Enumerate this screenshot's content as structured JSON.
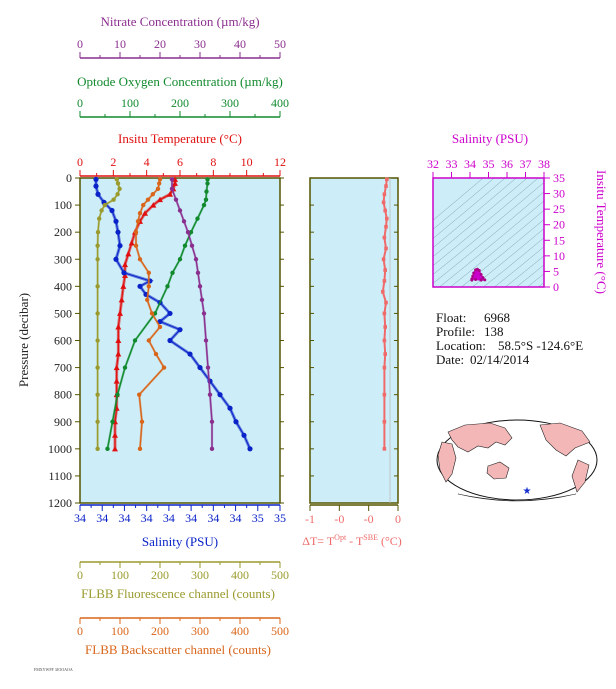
{
  "colors": {
    "nitrate": "#8b2f8f",
    "oxygen": "#118a2e",
    "temperature": "#e01010",
    "salinity": "#0a23c8",
    "fluorescence": "#9a9a2e",
    "backscatter": "#d9651a",
    "delta_t": "#f06a6a",
    "ts_axis": "#cc00cc",
    "panel_bg": "#cdeef8",
    "frame": "#555500"
  },
  "info": {
    "float_label": "Float:",
    "float_value": "6968",
    "profile_label": "Profile:",
    "profile_value": "138",
    "location_label": "Location:",
    "location_value": "58.5°S  -124.6°E",
    "date_label": "Date:",
    "date_value": "02/14/2014"
  },
  "chart_data": [
    {
      "type": "line",
      "panel": "profiles",
      "ylabel": "Pressure (decibar)",
      "ylim": [
        1200,
        0
      ],
      "yticks": [
        "0",
        "100",
        "200",
        "300",
        "400",
        "500",
        "600",
        "700",
        "800",
        "900",
        "1000",
        "1100",
        "1200"
      ],
      "grid": false,
      "axes": {
        "nitrate": {
          "label": "Nitrate Concentration (µm/kg)",
          "ticks": [
            "0",
            "10",
            "20",
            "30",
            "40",
            "50"
          ],
          "range": [
            0,
            50
          ]
        },
        "oxygen": {
          "label": "Optode Oxygen Concentration (µm/kg)",
          "ticks": [
            "0",
            "100",
            "200",
            "300",
            "400"
          ],
          "range": [
            0,
            400
          ]
        },
        "temperature": {
          "label": "Insitu Temperature (°C)",
          "ticks": [
            "0",
            "2",
            "4",
            "6",
            "8",
            "10",
            "12"
          ],
          "range": [
            0,
            12
          ]
        },
        "salinity": {
          "label": "Salinity (PSU)",
          "ticks": [
            "34",
            "34",
            "34",
            "34",
            "34",
            "34",
            "34",
            "34",
            "35",
            "35"
          ],
          "range": [
            34.0,
            35.0
          ]
        },
        "fluorescence": {
          "label": "FLBB Fluorescence channel (counts)",
          "ticks": [
            "0",
            "100",
            "200",
            "300",
            "400",
            "500"
          ],
          "range": [
            0,
            500
          ]
        },
        "backscatter": {
          "label": "FLBB Backscatter channel (counts)",
          "ticks": [
            "0",
            "100",
            "200",
            "300",
            "400",
            "500"
          ],
          "range": [
            0,
            500
          ]
        }
      },
      "series": [
        {
          "key": "temperature",
          "pressure": [
            5,
            20,
            40,
            60,
            80,
            100,
            130,
            160,
            200,
            240,
            280,
            320,
            360,
            400,
            450,
            500,
            550,
            600,
            650,
            700,
            750,
            800,
            850,
            900,
            950,
            1000
          ],
          "values": [
            5.7,
            5.7,
            5.6,
            5.4,
            4.8,
            4.4,
            3.9,
            3.6,
            3.3,
            3.1,
            2.9,
            2.7,
            2.7,
            2.6,
            2.5,
            2.4,
            2.3,
            2.3,
            2.3,
            2.2,
            2.2,
            2.2,
            2.2,
            2.1,
            2.1,
            2.1
          ]
        },
        {
          "key": "salinity",
          "pressure": [
            5,
            30,
            60,
            90,
            120,
            160,
            200,
            250,
            300,
            350,
            380,
            400,
            430,
            460,
            500,
            530,
            560,
            600,
            650,
            700,
            750,
            800,
            850,
            900,
            950,
            1000
          ],
          "values": [
            34.08,
            34.08,
            34.09,
            34.12,
            34.16,
            34.18,
            34.19,
            34.2,
            34.18,
            34.22,
            34.35,
            34.3,
            34.33,
            34.4,
            34.45,
            34.4,
            34.5,
            34.45,
            34.55,
            34.6,
            34.65,
            34.7,
            34.75,
            34.78,
            34.82,
            34.85
          ]
        },
        {
          "key": "oxygen",
          "pressure": [
            5,
            20,
            50,
            80,
            100,
            150,
            200,
            250,
            300,
            350,
            400,
            500,
            600,
            700,
            800,
            900,
            1000
          ],
          "values": [
            255,
            255,
            253,
            252,
            248,
            235,
            222,
            210,
            200,
            185,
            175,
            150,
            110,
            90,
            75,
            65,
            55
          ]
        },
        {
          "key": "nitrate",
          "pressure": [
            5,
            40,
            80,
            120,
            160,
            200,
            250,
            300,
            350,
            400,
            450,
            500,
            600,
            700,
            800,
            900,
            1000
          ],
          "values": [
            23,
            23,
            24,
            25,
            26,
            27,
            28,
            29,
            29.5,
            30,
            30.5,
            31,
            31.5,
            32,
            32.5,
            33,
            33
          ]
        },
        {
          "key": "fluorescence",
          "pressure": [
            5,
            20,
            40,
            60,
            80,
            100,
            120,
            150,
            200,
            250,
            300,
            400,
            500,
            600,
            700,
            800,
            900,
            1000
          ],
          "values": [
            92,
            95,
            99,
            94,
            84,
            62,
            54,
            48,
            45,
            44,
            44,
            44,
            44,
            44,
            44,
            44,
            44,
            44
          ]
        },
        {
          "key": "backscatter",
          "pressure": [
            5,
            20,
            40,
            60,
            80,
            100,
            130,
            160,
            200,
            250,
            300,
            350,
            400,
            450,
            500,
            550,
            600,
            650,
            700,
            800,
            900,
            1000
          ],
          "values": [
            200,
            198,
            195,
            182,
            170,
            158,
            150,
            145,
            140,
            140,
            150,
            172,
            172,
            168,
            180,
            200,
            172,
            190,
            210,
            148,
            155,
            150
          ]
        }
      ]
    },
    {
      "type": "line",
      "panel": "delta-temperature",
      "xlabel": "ΔT= T",
      "xlabel_sup1": "Opt",
      "xlabel_mid": " - T",
      "xlabel_sup2": "SBE",
      "xlabel_unit": " (°C)",
      "xticks": [
        "-1",
        "-0",
        "-0",
        "0"
      ],
      "xlim": [
        -1.0,
        0.1
      ],
      "ylim": [
        1200,
        0
      ],
      "series": [
        {
          "key": "delta_t",
          "pressure": [
            5,
            30,
            60,
            90,
            120,
            150,
            180,
            220,
            260,
            300,
            340,
            380,
            420,
            460,
            500,
            550,
            600,
            650,
            700,
            800,
            900,
            1000
          ],
          "values": [
            -0.04,
            -0.05,
            -0.07,
            -0.08,
            -0.06,
            -0.04,
            -0.05,
            -0.07,
            -0.05,
            -0.08,
            -0.06,
            -0.07,
            -0.09,
            -0.05,
            -0.07,
            -0.06,
            -0.07,
            -0.06,
            -0.07,
            -0.07,
            -0.07,
            -0.07
          ]
        }
      ]
    },
    {
      "type": "scatter",
      "panel": "ts-diagram",
      "xlabel": "Salinity (PSU)",
      "ylabel": "Insitu Temperature (°C)",
      "xticks": [
        "32",
        "33",
        "34",
        "35",
        "36",
        "37",
        "38"
      ],
      "xlim": [
        32,
        38
      ],
      "yticks": [
        "0",
        "5",
        "10",
        "15",
        "20",
        "25",
        "30",
        "35"
      ],
      "ylim": [
        0,
        35
      ],
      "series": [
        {
          "key": "ts",
          "salinity": [
            34.1,
            34.15,
            34.2,
            34.3,
            34.4,
            34.5,
            34.6,
            34.7,
            34.8,
            34.6,
            34.3,
            34.1
          ],
          "temperature": [
            2.2,
            3.5,
            4.5,
            5.5,
            5.7,
            5.3,
            4.0,
            3.0,
            2.3,
            2.2,
            2.4,
            2.6
          ]
        }
      ]
    }
  ]
}
